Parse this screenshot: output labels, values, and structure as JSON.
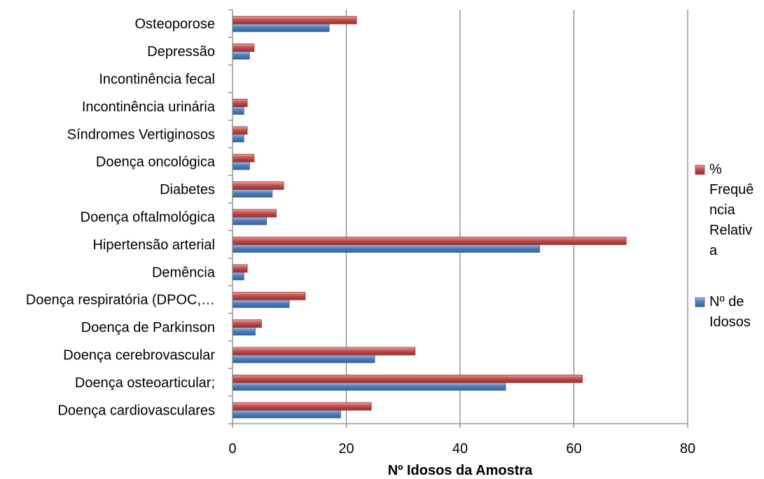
{
  "chart_data": {
    "type": "bar",
    "orientation": "horizontal",
    "categories": [
      "Doença cardiovasculares",
      "Doença osteoarticular;",
      "Doença cerebrovascular",
      "Doença de Parkinson",
      "Doença respiratória (DPOC,…",
      "Demência",
      "Hipertensão arterial",
      "Doença oftalmológica",
      "Diabetes",
      "Doença oncológica",
      "Síndromes Vertiginosos",
      "Incontinência urinária",
      "Incontinência fecal",
      "Depressão",
      "Osteoporose"
    ],
    "series": [
      {
        "name": "Nº de Idosos",
        "color": "#4f81bd",
        "values": [
          19,
          48,
          25,
          4,
          10,
          2,
          54,
          6,
          7,
          3,
          2,
          2,
          0,
          3,
          17
        ]
      },
      {
        "name": "% Frequência Relativa",
        "color": "#c0504d",
        "values": [
          24.4,
          61.5,
          32.1,
          5.1,
          12.8,
          2.6,
          69.2,
          7.7,
          9,
          3.8,
          2.6,
          2.6,
          0,
          3.8,
          21.8
        ]
      }
    ],
    "xlabel": "Nº Idosos da Amostra",
    "ylabel": "",
    "title": "",
    "xlim": [
      0,
      80
    ],
    "xticks": [
      0,
      20,
      40,
      60,
      80
    ],
    "grid": "vertical",
    "legend_position": "right",
    "legend_entries": [
      {
        "lines": [
          "%",
          "Frequê",
          "ncia",
          "Relativ",
          "a"
        ],
        "color": "#c0504d"
      },
      {
        "lines": [
          "Nº de",
          "Idosos"
        ],
        "color": "#4f81bd"
      }
    ]
  }
}
